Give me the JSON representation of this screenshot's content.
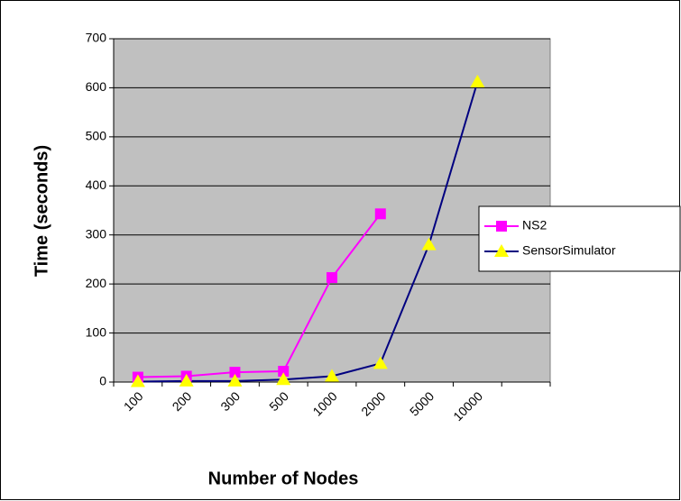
{
  "chart_data": {
    "type": "line",
    "xlabel": "Number of Nodes",
    "ylabel": "Time (seconds)",
    "categories": [
      "100",
      "200",
      "300",
      "500",
      "1000",
      "2000",
      "5000",
      "10000",
      null
    ],
    "series": [
      {
        "name": "NS2",
        "color": "#ff00ff",
        "marker_color": "#ff00ff",
        "marker": "square",
        "values": [
          10,
          12,
          20,
          22,
          213,
          343,
          null,
          null,
          null
        ]
      },
      {
        "name": "SensorSimulator",
        "color": "#000080",
        "marker_color": "#ffff00",
        "marker": "triangle",
        "values": [
          1,
          2,
          2,
          5,
          12,
          38,
          280,
          612,
          null
        ]
      }
    ],
    "ylim": [
      0,
      700
    ],
    "yticks": [
      0,
      100,
      200,
      300,
      400,
      500,
      600,
      700
    ],
    "grid": true,
    "plot_background": "#c0c0c0",
    "legend": "right"
  }
}
